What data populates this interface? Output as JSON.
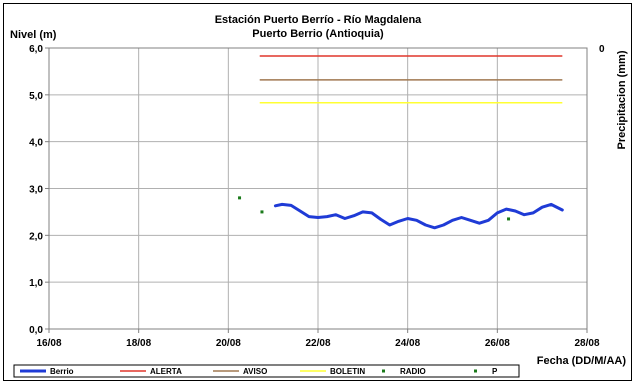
{
  "chart_data": {
    "type": "line",
    "title": "Estación Puerto Berrío - Río Magdalena",
    "subtitle": "Puerto Berrio (Antioquia)",
    "ylabel": "Nivel (m)",
    "y2label": "Precipitacion (mm)",
    "xlabel": "Fecha (DD/M/AA)",
    "ylim": [
      0,
      6
    ],
    "yticks": [
      "0,0",
      "1,0",
      "2,0",
      "3,0",
      "4,0",
      "5,0",
      "6,0"
    ],
    "y2ticks": [
      "0"
    ],
    "xlim": [
      16,
      28
    ],
    "xticks": [
      "16/08",
      "18/08",
      "20/08",
      "22/08",
      "24/08",
      "26/08",
      "28/08"
    ],
    "grid": true,
    "legend_position": "bottom",
    "series": [
      {
        "name": "Berrio",
        "kind": "line",
        "color": "#1f3bd6",
        "x": [
          21.05,
          21.2,
          21.4,
          21.6,
          21.8,
          22.0,
          22.2,
          22.4,
          22.6,
          22.8,
          23.0,
          23.2,
          23.4,
          23.6,
          23.8,
          24.0,
          24.2,
          24.4,
          24.6,
          24.8,
          25.0,
          25.2,
          25.4,
          25.6,
          25.8,
          26.0,
          26.2,
          26.4,
          26.6,
          26.8,
          27.0,
          27.2,
          27.45
        ],
        "y": [
          2.63,
          2.66,
          2.64,
          2.52,
          2.4,
          2.38,
          2.4,
          2.44,
          2.36,
          2.42,
          2.5,
          2.48,
          2.34,
          2.22,
          2.3,
          2.36,
          2.32,
          2.22,
          2.16,
          2.22,
          2.32,
          2.38,
          2.32,
          2.26,
          2.32,
          2.48,
          2.56,
          2.52,
          2.44,
          2.48,
          2.6,
          2.66,
          2.54
        ]
      },
      {
        "name": "ALERTA",
        "kind": "hline",
        "color": "#e0372b",
        "x": [
          20.7,
          27.45
        ],
        "y": 5.83
      },
      {
        "name": "AVISO",
        "kind": "hline",
        "color": "#a07850",
        "x": [
          20.7,
          27.45
        ],
        "y": 5.32
      },
      {
        "name": "BOLETIN",
        "kind": "hline",
        "color": "#ffff33",
        "x": [
          20.7,
          27.45
        ],
        "y": 4.83
      },
      {
        "name": "RADIO",
        "kind": "points",
        "color": "#1a7a1a",
        "x": [
          20.25,
          20.75,
          26.25
        ],
        "y": [
          2.8,
          2.5,
          2.35
        ]
      },
      {
        "name": "P",
        "kind": "points",
        "color": "#1a7a1a",
        "x": [],
        "y": []
      }
    ]
  }
}
